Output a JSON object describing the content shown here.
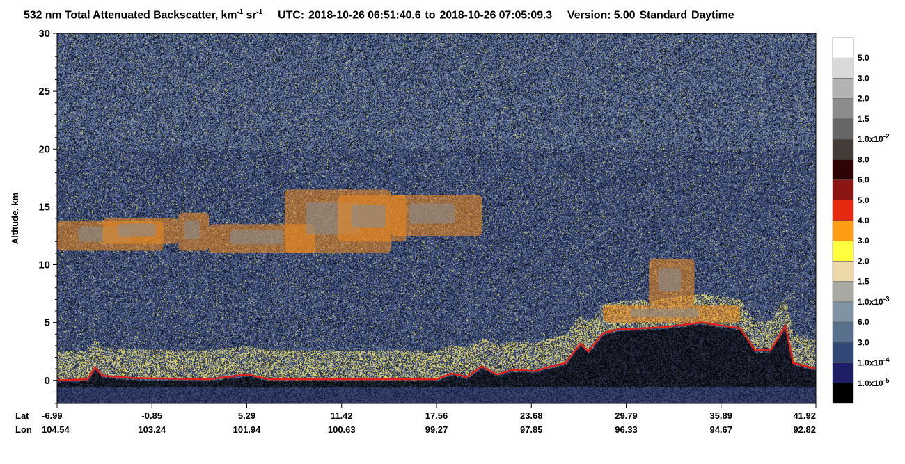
{
  "title": {
    "quantity": "532 nm Total Attenuated Backscatter, km",
    "unit_exp1": "-1",
    "unit_mid": " sr",
    "unit_exp2": "-1",
    "utc_label": "UTC:",
    "start": "2018-10-26 06:51:40.6",
    "to": "to",
    "end": "2018-10-26 07:05:09.3",
    "version": "Version: 5.00",
    "product": "Standard",
    "mode": "Daytime"
  },
  "colors": {
    "background_noise": "#2e3a55",
    "cloud_orange": "#f08a1e",
    "surface_red": "#e0201a"
  },
  "chart_data": {
    "type": "heatmap",
    "title": "532 nm Total Attenuated Backscatter, km-1 sr-1",
    "ylabel": "Altitude, km",
    "ylim": [
      -2,
      30
    ],
    "yticks": [
      0,
      5,
      10,
      15,
      20,
      25,
      30
    ],
    "x_labels": {
      "lat_label": "Lat",
      "lon_label": "Lon",
      "lat": [
        "-6.99",
        "-0.85",
        "5.29",
        "11.42",
        "17.56",
        "23.68",
        "29.79",
        "35.89",
        "41.92"
      ],
      "lon": [
        "104.54",
        "103.24",
        "101.94",
        "100.63",
        "99.27",
        "97.85",
        "96.33",
        "94.67",
        "92.82"
      ]
    },
    "colorbar": {
      "labels": [
        {
          "mant": "5.0"
        },
        {
          "mant": "3.0"
        },
        {
          "mant": "2.0"
        },
        {
          "mant": "1.5"
        },
        {
          "mant": "1.0x10",
          "exp": "-2"
        },
        {
          "mant": "8.0"
        },
        {
          "mant": "6.0"
        },
        {
          "mant": "5.0"
        },
        {
          "mant": "4.0"
        },
        {
          "mant": "3.0"
        },
        {
          "mant": "2.0"
        },
        {
          "mant": "1.5"
        },
        {
          "mant": "1.0x10",
          "exp": "-3"
        },
        {
          "mant": "6.0"
        },
        {
          "mant": "3.0"
        },
        {
          "mant": "1.0x10",
          "exp": "-4"
        },
        {
          "mant": "1.0x10",
          "exp": "-5"
        }
      ],
      "colors": [
        "#ffffff",
        "#d9d9d9",
        "#b3b3b3",
        "#8c8c8c",
        "#666666",
        "#443c38",
        "#2e0404",
        "#8c1612",
        "#e62a10",
        "#ff9e14",
        "#ffff40",
        "#ecd8a8",
        "#a7a9a2",
        "#7f93a3",
        "#59708c",
        "#324775",
        "#1e1e66",
        "#000000"
      ]
    },
    "surface_altitude_km": [
      [
        0,
        0
      ],
      [
        0.04,
        0.1
      ],
      [
        0.05,
        1.1
      ],
      [
        0.06,
        0.4
      ],
      [
        0.1,
        0.2
      ],
      [
        0.2,
        0.1
      ],
      [
        0.25,
        0.5
      ],
      [
        0.28,
        0.1
      ],
      [
        0.4,
        0.1
      ],
      [
        0.5,
        0.1
      ],
      [
        0.52,
        0.6
      ],
      [
        0.54,
        0.3
      ],
      [
        0.56,
        1.2
      ],
      [
        0.58,
        0.5
      ],
      [
        0.6,
        0.9
      ],
      [
        0.63,
        0.8
      ],
      [
        0.65,
        1.2
      ],
      [
        0.67,
        1.5
      ],
      [
        0.69,
        3.2
      ],
      [
        0.7,
        2.5
      ],
      [
        0.72,
        4.1
      ],
      [
        0.74,
        4.4
      ],
      [
        0.8,
        4.6
      ],
      [
        0.85,
        5.0
      ],
      [
        0.9,
        4.5
      ],
      [
        0.92,
        2.6
      ],
      [
        0.94,
        2.6
      ],
      [
        0.96,
        4.7
      ],
      [
        0.97,
        1.5
      ],
      [
        1.0,
        1.0
      ]
    ],
    "cloud_layers": [
      {
        "x0": 0.0,
        "x1": 0.14,
        "ybot": 11.2,
        "ytop": 13.8
      },
      {
        "x0": 0.06,
        "x1": 0.16,
        "ybot": 11.8,
        "ytop": 14.0
      },
      {
        "x0": 0.16,
        "x1": 0.2,
        "ybot": 11.2,
        "ytop": 14.5
      },
      {
        "x0": 0.2,
        "x1": 0.34,
        "ybot": 11.0,
        "ytop": 13.5
      },
      {
        "x0": 0.3,
        "x1": 0.44,
        "ybot": 11.0,
        "ytop": 16.5
      },
      {
        "x0": 0.37,
        "x1": 0.46,
        "ybot": 12.0,
        "ytop": 16.0
      },
      {
        "x0": 0.44,
        "x1": 0.56,
        "ybot": 12.5,
        "ytop": 16.0
      },
      {
        "x0": 0.78,
        "x1": 0.84,
        "ybot": 6.5,
        "ytop": 10.5
      },
      {
        "x0": 0.72,
        "x1": 0.9,
        "ybot": 5.0,
        "ytop": 6.5
      }
    ]
  }
}
